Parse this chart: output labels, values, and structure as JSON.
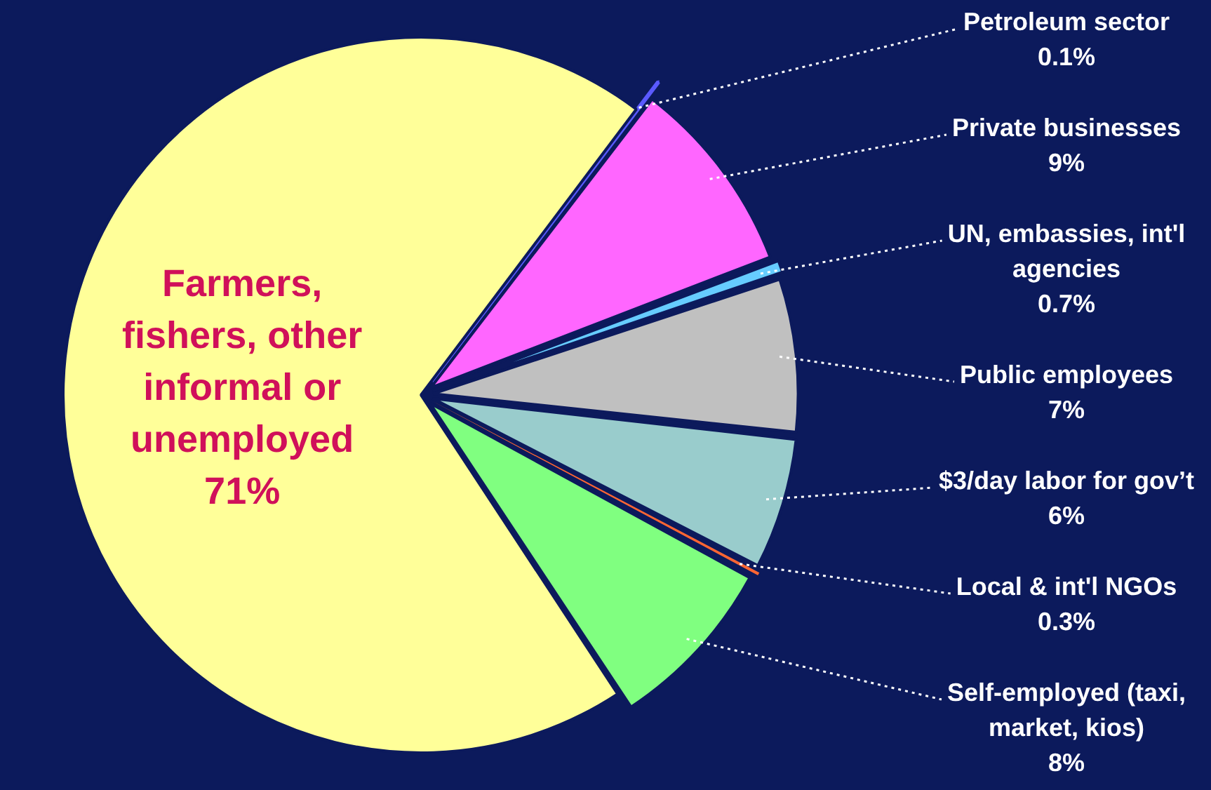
{
  "chart_data": {
    "type": "pie",
    "categories": [
      "Petroleum sector",
      "Private businesses",
      "UN, embassies, int'l agencies",
      "Public employees",
      "$3/day labor for gov’t",
      "Local & int'l NGOs",
      "Self-employed (taxi, market, kios)",
      "Farmers, fishers, other informal or unemployed"
    ],
    "values": [
      0.1,
      9,
      0.7,
      7,
      6,
      0.3,
      8,
      71
    ],
    "value_labels": [
      "0.1%",
      "9%",
      "0.7%",
      "7%",
      "6%",
      "0.3%",
      "8%",
      "71%"
    ],
    "colors": [
      "#5a5aff",
      "#ff66ff",
      "#66ccff",
      "#c0c0c0",
      "#99cccc",
      "#ff6633",
      "#80ff80",
      "#ffff99"
    ],
    "legend": false
  }
}
